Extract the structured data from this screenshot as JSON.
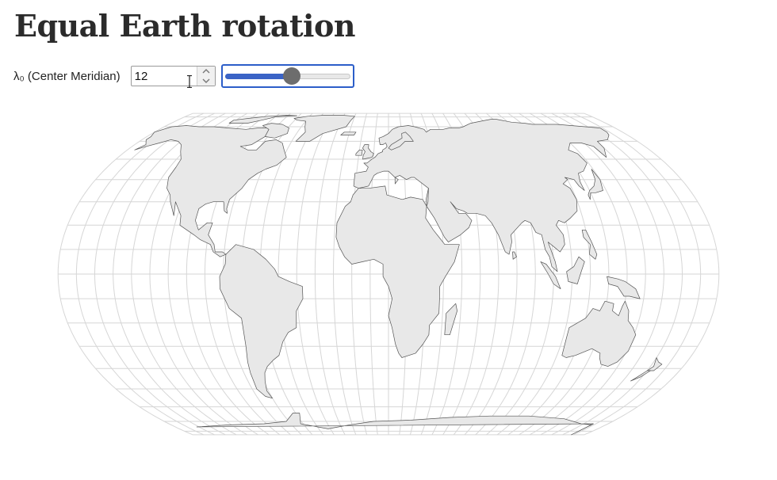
{
  "header": {
    "title": "Equal Earth rotation"
  },
  "controls": {
    "lambda_label": "λ₀ (Center Meridian)",
    "lambda_value": "12",
    "slider": {
      "min": -180,
      "max": 180,
      "value": 12
    }
  },
  "map": {
    "projection": "Equal Earth",
    "center_meridian": 12,
    "graticule_step_deg": 10,
    "colors": {
      "land": "#e8e8e8",
      "coast": "#555555",
      "graticule": "#d6d6d6",
      "accent": "#2c5ec9"
    }
  }
}
